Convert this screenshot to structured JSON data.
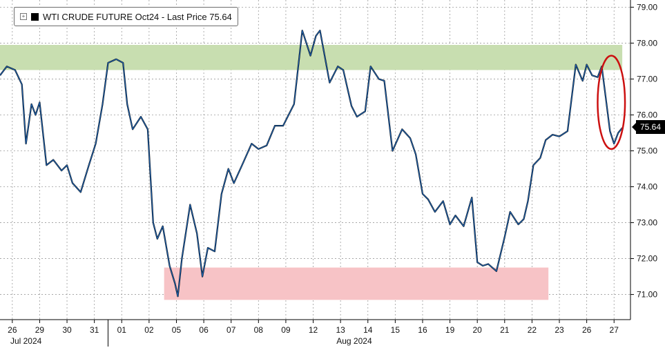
{
  "legend": {
    "toggle_icon": "expand-toggle-icon",
    "swatch_color": "#000000",
    "label": "WTI CRUDE FUTURE Oct24 - Last Price 75.64"
  },
  "last_price_label": "75.64",
  "chart_data": {
    "type": "line",
    "title": "",
    "xlabel": "",
    "ylabel": "",
    "ylim": [
      70.3,
      79.2
    ],
    "y_ticks": [
      "71.00",
      "72.00",
      "73.00",
      "74.00",
      "75.00",
      "76.00",
      "77.00",
      "78.00",
      "79.00"
    ],
    "y_tick_values": [
      71,
      72,
      73,
      74,
      75,
      76,
      77,
      78,
      79
    ],
    "y_axis_position": "right",
    "grid": true,
    "legend_position": "top-left",
    "x_ticks": [
      "26",
      "29",
      "30",
      "31",
      "01",
      "02",
      "05",
      "06",
      "07",
      "08",
      "09",
      "12",
      "13",
      "14",
      "15",
      "16",
      "19",
      "20",
      "21",
      "22",
      "23",
      "26",
      "27"
    ],
    "x_tick_positions": [
      0,
      1,
      2,
      3,
      4,
      5,
      6,
      7,
      8,
      9,
      10,
      11,
      12,
      13,
      14,
      15,
      16,
      17,
      18,
      19,
      20,
      21,
      22
    ],
    "month_labels": [
      {
        "text": "Jul 2024",
        "at": 0.5
      },
      {
        "text": "Aug 2024",
        "at": 12.5
      }
    ],
    "month_divider_at": 3.5,
    "xlim": [
      -0.45,
      22.6
    ],
    "zones": [
      {
        "color": "#c8deb0",
        "x": [
          -0.45,
          22.3
        ],
        "y": [
          77.25,
          77.95
        ]
      },
      {
        "color": "#f7c3c6",
        "x": [
          5.55,
          19.6
        ],
        "y": [
          70.85,
          71.75
        ]
      }
    ],
    "highlight": {
      "color": "#cc1010",
      "cx": 21.9,
      "cy": 76.35,
      "rx": 0.5,
      "ry": 1.3
    },
    "series": [
      {
        "color": "#1f5fa8",
        "x": [
          -0.45,
          -0.2,
          0.1,
          0.35,
          0.5,
          0.7,
          0.85,
          1.0,
          1.25,
          1.5,
          1.8,
          2.0,
          2.2,
          2.5,
          2.8,
          3.05,
          3.3,
          3.5,
          3.8,
          4.05,
          4.2,
          4.4,
          4.7,
          4.95,
          5.15,
          5.3,
          5.5,
          5.75,
          5.95,
          6.05,
          6.2,
          6.5,
          6.75,
          6.95,
          7.15,
          7.4,
          7.65,
          7.9,
          8.1,
          8.4,
          8.75,
          9.0,
          9.3,
          9.6,
          9.9,
          10.3,
          10.6,
          10.9,
          11.1,
          11.25,
          11.6,
          11.9,
          12.1,
          12.4,
          12.6,
          12.9,
          13.1,
          13.4,
          13.6,
          13.9,
          14.25,
          14.55,
          14.75,
          15.0,
          15.2,
          15.45,
          15.75,
          16.0,
          16.2,
          16.5,
          16.8,
          17.0,
          17.2,
          17.4,
          17.7,
          18.0,
          18.2,
          18.5,
          18.7,
          18.85,
          19.05,
          19.3,
          19.5,
          19.75,
          20.0,
          20.3,
          20.6,
          20.85,
          21.0,
          21.2,
          21.4,
          21.55,
          21.7,
          21.85,
          22.0,
          22.15,
          22.3
        ],
        "values": [
          77.1,
          77.35,
          77.25,
          76.85,
          75.2,
          76.3,
          76.0,
          76.35,
          74.6,
          74.75,
          74.45,
          74.6,
          74.1,
          73.85,
          74.6,
          75.2,
          76.3,
          77.45,
          77.55,
          77.45,
          76.3,
          75.6,
          75.95,
          75.6,
          73.0,
          72.55,
          72.9,
          71.8,
          71.3,
          70.95,
          72.0,
          73.5,
          72.7,
          71.5,
          72.3,
          72.2,
          73.8,
          74.5,
          74.1,
          74.6,
          75.2,
          75.05,
          75.15,
          75.7,
          75.7,
          76.3,
          78.35,
          77.65,
          78.2,
          78.35,
          76.9,
          77.35,
          77.25,
          76.25,
          75.95,
          76.1,
          77.35,
          77.0,
          76.95,
          75.0,
          75.6,
          75.35,
          74.9,
          73.8,
          73.65,
          73.3,
          73.6,
          72.95,
          73.2,
          72.9,
          73.7,
          71.9,
          71.8,
          71.85,
          71.65,
          72.6,
          73.3,
          72.95,
          73.1,
          73.6,
          74.6,
          74.8,
          75.3,
          75.45,
          75.4,
          75.55,
          77.4,
          76.95,
          77.4,
          77.1,
          77.05,
          77.35,
          76.45,
          75.55,
          75.2,
          75.5,
          75.64
        ]
      }
    ]
  }
}
